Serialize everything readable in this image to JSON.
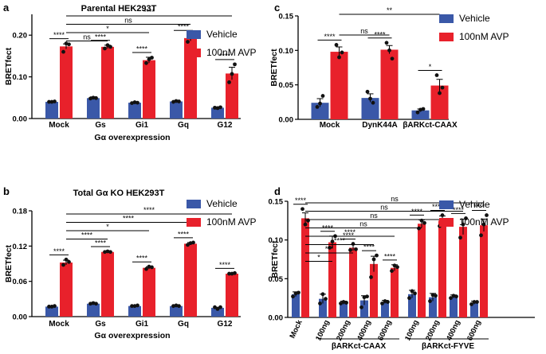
{
  "colors": {
    "vehicle": "#3a58a8",
    "avp": "#e8212b",
    "dot": "#111111"
  },
  "chart_data": [
    {
      "panel": "a",
      "type": "bar",
      "title": "Parental HEK293T",
      "xlabel": "Gα overexpression",
      "ylabel": "BRETfect",
      "ylim": [
        0,
        0.25
      ],
      "yticks": [
        "0.00",
        "0.10",
        "0.20"
      ],
      "ytick_values": [
        0,
        0.1,
        0.2
      ],
      "categories": [
        "Mock",
        "Gs",
        "Gi1",
        "Gq",
        "G12"
      ],
      "series": [
        {
          "name": "Vehicle",
          "values": [
            0.04,
            0.049,
            0.038,
            0.041,
            0.026
          ],
          "errors": [
            0.002,
            0.003,
            0.002,
            0.002,
            0.001
          ],
          "points": [
            [
              0.04,
              0.04,
              0.041
            ],
            [
              0.048,
              0.05,
              0.049
            ],
            [
              0.037,
              0.039,
              0.038
            ],
            [
              0.04,
              0.042,
              0.041
            ],
            [
              0.026,
              0.025,
              0.027
            ]
          ]
        },
        {
          "name": "100nM AVP",
          "values": [
            0.173,
            0.172,
            0.14,
            0.193,
            0.108
          ],
          "errors": [
            0.006,
            0.004,
            0.007,
            0.007,
            0.015
          ],
          "points": [
            [
              0.16,
              0.18,
              0.178
            ],
            [
              0.168,
              0.176,
              0.172
            ],
            [
              0.133,
              0.142,
              0.146
            ],
            [
              0.184,
              0.195,
              0.2
            ],
            [
              0.087,
              0.107,
              0.13
            ]
          ]
        }
      ],
      "legend": [
        "Vehicle",
        "100nM AVP"
      ],
      "sig_within": [
        "****",
        "****",
        "****",
        "****",
        "****"
      ],
      "sig_between": [
        {
          "from": 0,
          "to": 1,
          "label": "ns"
        },
        {
          "from": 0,
          "to": 2,
          "label": "*"
        },
        {
          "from": 0,
          "to": 3,
          "label": "ns"
        },
        {
          "from": 0,
          "to": 4,
          "label": "****"
        }
      ]
    },
    {
      "panel": "b",
      "type": "bar",
      "title": "Total Gα KO HEK293T",
      "xlabel": "Gα overexpression",
      "ylabel": "BRETfect",
      "ylim": [
        0,
        0.18
      ],
      "yticks": [
        "0.00",
        "0.06",
        "0.12",
        "0.18"
      ],
      "ytick_values": [
        0,
        0.06,
        0.12,
        0.18
      ],
      "categories": [
        "Mock",
        "Gs",
        "Gi1",
        "Gq",
        "G12"
      ],
      "series": [
        {
          "name": "Vehicle",
          "values": [
            0.017,
            0.022,
            0.018,
            0.018,
            0.015
          ],
          "errors": [
            0.001,
            0.001,
            0.001,
            0.001,
            0.001
          ],
          "points": [
            [
              0.017,
              0.017,
              0.018
            ],
            [
              0.022,
              0.023,
              0.022
            ],
            [
              0.018,
              0.018,
              0.019
            ],
            [
              0.018,
              0.019,
              0.018
            ],
            [
              0.016,
              0.013,
              0.016
            ]
          ]
        },
        {
          "name": "100nM AVP",
          "values": [
            0.092,
            0.11,
            0.083,
            0.124,
            0.073
          ],
          "errors": [
            0.004,
            0.001,
            0.002,
            0.002,
            0.001
          ],
          "points": [
            [
              0.088,
              0.097,
              0.093
            ],
            [
              0.11,
              0.111,
              0.11
            ],
            [
              0.081,
              0.085,
              0.084
            ],
            [
              0.122,
              0.125,
              0.126
            ],
            [
              0.073,
              0.073,
              0.074
            ]
          ]
        }
      ],
      "legend": [
        "Vehicle",
        "100nM AVP"
      ],
      "sig_within": [
        "****",
        "****",
        "****",
        "****",
        "****"
      ],
      "sig_between": [
        {
          "from": 0,
          "to": 1,
          "label": "****"
        },
        {
          "from": 0,
          "to": 2,
          "label": "*"
        },
        {
          "from": 0,
          "to": 3,
          "label": "****"
        },
        {
          "from": 0,
          "to": 4,
          "label": "****"
        }
      ]
    },
    {
      "panel": "c",
      "type": "bar",
      "title": "",
      "xlabel": "",
      "ylabel": "BRETfect",
      "ylim": [
        0,
        0.15
      ],
      "yticks": [
        "0.00",
        "0.05",
        "0.10",
        "0.15"
      ],
      "ytick_values": [
        0,
        0.05,
        0.1,
        0.15
      ],
      "categories": [
        "Mock",
        "DynK44A",
        "βARKct-CAAX"
      ],
      "series": [
        {
          "name": "Vehicle",
          "values": [
            0.024,
            0.031,
            0.013
          ],
          "errors": [
            0.006,
            0.006,
            0.002
          ],
          "points": [
            [
              0.018,
              0.023,
              0.034
            ],
            [
              0.04,
              0.03,
              0.024
            ],
            [
              0.01,
              0.014,
              0.015
            ]
          ]
        },
        {
          "name": "100nM AVP",
          "values": [
            0.098,
            0.101,
            0.049
          ],
          "errors": [
            0.007,
            0.006,
            0.009
          ],
          "points": [
            [
              0.108,
              0.09,
              0.097
            ],
            [
              0.111,
              0.1,
              0.088
            ],
            [
              0.064,
              0.038,
              0.046
            ]
          ]
        }
      ],
      "legend": [
        "Vehicle",
        "100nM AVP"
      ],
      "sig_within": [
        "****",
        "****",
        "*"
      ],
      "sig_between": [
        {
          "from": 0,
          "to": 1,
          "label": "ns"
        },
        {
          "from": 0,
          "to": 2,
          "label": "**"
        }
      ]
    },
    {
      "panel": "d",
      "type": "bar",
      "title": "",
      "xlabel": "",
      "ylabel": "BRETfect",
      "ylim": [
        0,
        0.15
      ],
      "yticks": [
        "0.00",
        "0.05",
        "0.10",
        "0.15"
      ],
      "ytick_values": [
        0,
        0.05,
        0.1,
        0.15
      ],
      "categories": [
        "Mock",
        "100ng",
        "200ng",
        "400ng",
        "600ng",
        "100ng",
        "200ng",
        "400ng",
        "600ng"
      ],
      "groups": [
        {
          "label": "βARKct-CAAX",
          "from": 1,
          "to": 4
        },
        {
          "label": "βARKct-FYVE",
          "from": 5,
          "to": 8
        }
      ],
      "series": [
        {
          "name": "Vehicle",
          "values": [
            0.03,
            0.024,
            0.019,
            0.022,
            0.02,
            0.03,
            0.026,
            0.027,
            0.019
          ],
          "errors": [
            0.003,
            0.006,
            0.002,
            0.006,
            0.002,
            0.005,
            0.005,
            0.002,
            0.002
          ],
          "points": [
            [
              0.027,
              0.031,
              0.032
            ],
            [
              0.018,
              0.03,
              0.024
            ],
            [
              0.018,
              0.02,
              0.019
            ],
            [
              0.013,
              0.026,
              0.027
            ],
            [
              0.018,
              0.021,
              0.02
            ],
            [
              0.025,
              0.034,
              0.031
            ],
            [
              0.021,
              0.029,
              0.028
            ],
            [
              0.025,
              0.028,
              0.027
            ],
            [
              0.017,
              0.02,
              0.02
            ]
          ]
        },
        {
          "name": "100nM AVP",
          "values": [
            0.128,
            0.097,
            0.09,
            0.069,
            0.064,
            0.121,
            0.125,
            0.117,
            0.119
          ],
          "errors": [
            0.007,
            0.008,
            0.004,
            0.01,
            0.004,
            0.005,
            0.006,
            0.01,
            0.008
          ],
          "points": [
            [
              0.14,
              0.12,
              0.125
            ],
            [
              0.09,
              0.098,
              0.105
            ],
            [
              0.087,
              0.095,
              0.088
            ],
            [
              0.052,
              0.075,
              0.08
            ],
            [
              0.06,
              0.067,
              0.065
            ],
            [
              0.115,
              0.125,
              0.122
            ],
            [
              0.118,
              0.132,
              0.125
            ],
            [
              0.103,
              0.12,
              0.128
            ],
            [
              0.106,
              0.12,
              0.132
            ]
          ]
        }
      ],
      "legend": [
        "Vehicle",
        "100nM AVP"
      ],
      "sig_within": [
        "****",
        "****",
        "****",
        "****",
        "****",
        "****",
        "****",
        "****",
        "****"
      ],
      "sig_between": [
        {
          "from": 0,
          "to": 1,
          "label": "*"
        },
        {
          "from": 0,
          "to": 2,
          "label": "***"
        },
        {
          "from": 0,
          "to": 3,
          "label": "****"
        },
        {
          "from": 0,
          "to": 4,
          "label": "****"
        },
        {
          "from": 0,
          "to": 5,
          "label": "ns"
        },
        {
          "from": 0,
          "to": 6,
          "label": "ns"
        },
        {
          "from": 0,
          "to": 7,
          "label": "ns"
        },
        {
          "from": 0,
          "to": 8,
          "label": "ns"
        }
      ]
    }
  ]
}
